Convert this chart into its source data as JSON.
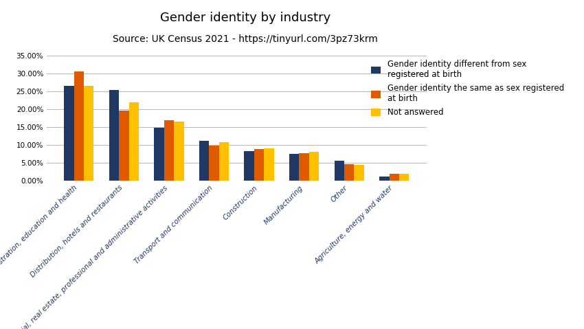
{
  "title": "Gender identity by industry",
  "subtitle": "Source: UK Census 2021 - https://tinyurl.com/3pz73krm",
  "categories": [
    "Public administration, education and health",
    "Distribution, hotels and restaurants",
    "Financial, real estate, professional and administrative activities",
    "Transport and communication",
    "Construction",
    "Manufacturing",
    "Other",
    "Agriculture, energy and water"
  ],
  "series": [
    {
      "name": "Gender identity different from sex\nregistered at birth",
      "color": "#1F3864",
      "values": [
        0.266,
        0.254,
        0.148,
        0.113,
        0.083,
        0.075,
        0.056,
        0.013
      ]
    },
    {
      "name": "Gender identity the same as sex registered\nat birth",
      "color": "#E05A00",
      "values": [
        0.307,
        0.197,
        0.171,
        0.098,
        0.089,
        0.077,
        0.047,
        0.02
      ]
    },
    {
      "name": "Not answered",
      "color": "#FFC000",
      "values": [
        0.266,
        0.221,
        0.167,
        0.108,
        0.091,
        0.082,
        0.046,
        0.021
      ]
    }
  ],
  "ylim": [
    0,
    0.35
  ],
  "yticks": [
    0.0,
    0.05,
    0.1,
    0.15,
    0.2,
    0.25,
    0.3,
    0.35
  ],
  "title_fontsize": 13,
  "subtitle_fontsize": 10,
  "legend_fontsize": 8.5,
  "tick_fontsize": 7.5,
  "bar_width": 0.22,
  "title_color": "#000000",
  "subtitle_color": "#000000",
  "xtick_color": "#1F3864",
  "grid_color": "#BBBBBB",
  "background_color": "#FFFFFF"
}
